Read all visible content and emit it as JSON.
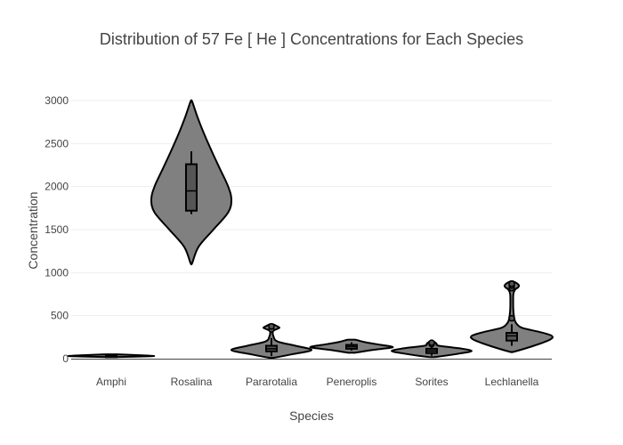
{
  "chart_data": {
    "type": "violin",
    "title": "Distribution of 57  Fe  [ He ]  Concentrations for Each Species",
    "xlabel": "Species",
    "ylabel": "Concentration",
    "ylim": [
      0,
      3000
    ],
    "yticks": [
      0,
      500,
      1000,
      1500,
      2000,
      2500,
      3000
    ],
    "grid": true,
    "fill_color": "#808080",
    "line_color": "#000000",
    "categories": [
      "Amphi",
      "Rosalina",
      "Pararotalia",
      "Peneroplis",
      "Sorites",
      "Lechlanella"
    ],
    "series": [
      {
        "category": "Amphi",
        "min": 20,
        "max": 50,
        "box": {
          "q1": 28,
          "median": 33,
          "q3": 38,
          "low": 22,
          "high": 45
        },
        "outliers": [],
        "density": [
          [
            20,
            0.2
          ],
          [
            28,
            1.0
          ],
          [
            33,
            1.0
          ],
          [
            40,
            0.7
          ],
          [
            50,
            0.15
          ]
        ]
      },
      {
        "category": "Rosalina",
        "min": 1110,
        "max": 2990,
        "box": {
          "q1": 1720,
          "median": 1950,
          "q3": 2260,
          "low": 1680,
          "high": 2410
        },
        "outliers": [],
        "density": [
          [
            1110,
            0.02
          ],
          [
            1300,
            0.18
          ],
          [
            1500,
            0.55
          ],
          [
            1700,
            0.92
          ],
          [
            1850,
            1.0
          ],
          [
            2000,
            0.92
          ],
          [
            2200,
            0.72
          ],
          [
            2400,
            0.52
          ],
          [
            2600,
            0.33
          ],
          [
            2800,
            0.16
          ],
          [
            2990,
            0.02
          ]
        ]
      },
      {
        "category": "Pararotalia",
        "min": 10,
        "max": 400,
        "box": {
          "q1": 85,
          "median": 115,
          "q3": 150,
          "low": 30,
          "high": 240
        },
        "outliers": [
          340,
          375
        ],
        "density": [
          [
            10,
            0.05
          ],
          [
            50,
            0.5
          ],
          [
            100,
            1.0
          ],
          [
            150,
            0.6
          ],
          [
            200,
            0.15
          ],
          [
            260,
            0.05
          ],
          [
            320,
            0.04
          ],
          [
            345,
            0.14
          ],
          [
            360,
            0.2
          ],
          [
            375,
            0.15
          ],
          [
            400,
            0.04
          ]
        ]
      },
      {
        "category": "Peneroplis",
        "min": 70,
        "max": 220,
        "box": {
          "q1": 115,
          "median": 140,
          "q3": 160,
          "low": 95,
          "high": 190
        },
        "outliers": [],
        "density": [
          [
            70,
            0.1
          ],
          [
            100,
            0.5
          ],
          [
            125,
            0.95
          ],
          [
            140,
            1.0
          ],
          [
            170,
            0.6
          ],
          [
            195,
            0.3
          ],
          [
            220,
            0.1
          ]
        ]
      },
      {
        "category": "Sorites",
        "min": 20,
        "max": 200,
        "box": {
          "q1": 65,
          "median": 90,
          "q3": 115,
          "low": 35,
          "high": 150
        },
        "outliers": [
          170,
          185
        ],
        "density": [
          [
            20,
            0.1
          ],
          [
            60,
            0.7
          ],
          [
            90,
            1.0
          ],
          [
            120,
            0.7
          ],
          [
            150,
            0.18
          ],
          [
            175,
            0.12
          ],
          [
            200,
            0.05
          ]
        ]
      },
      {
        "category": "Lechlanella",
        "min": 80,
        "max": 900,
        "box": {
          "q1": 210,
          "median": 265,
          "q3": 300,
          "low": 150,
          "high": 400
        },
        "outliers": [
          470,
          820,
          850,
          870
        ],
        "density": [
          [
            80,
            0.05
          ],
          [
            150,
            0.55
          ],
          [
            220,
            0.95
          ],
          [
            265,
            1.0
          ],
          [
            310,
            0.7
          ],
          [
            360,
            0.25
          ],
          [
            420,
            0.1
          ],
          [
            480,
            0.06
          ],
          [
            560,
            0.04
          ],
          [
            650,
            0.035
          ],
          [
            750,
            0.04
          ],
          [
            800,
            0.08
          ],
          [
            830,
            0.16
          ],
          [
            850,
            0.18
          ],
          [
            875,
            0.13
          ],
          [
            900,
            0.03
          ]
        ]
      }
    ]
  }
}
